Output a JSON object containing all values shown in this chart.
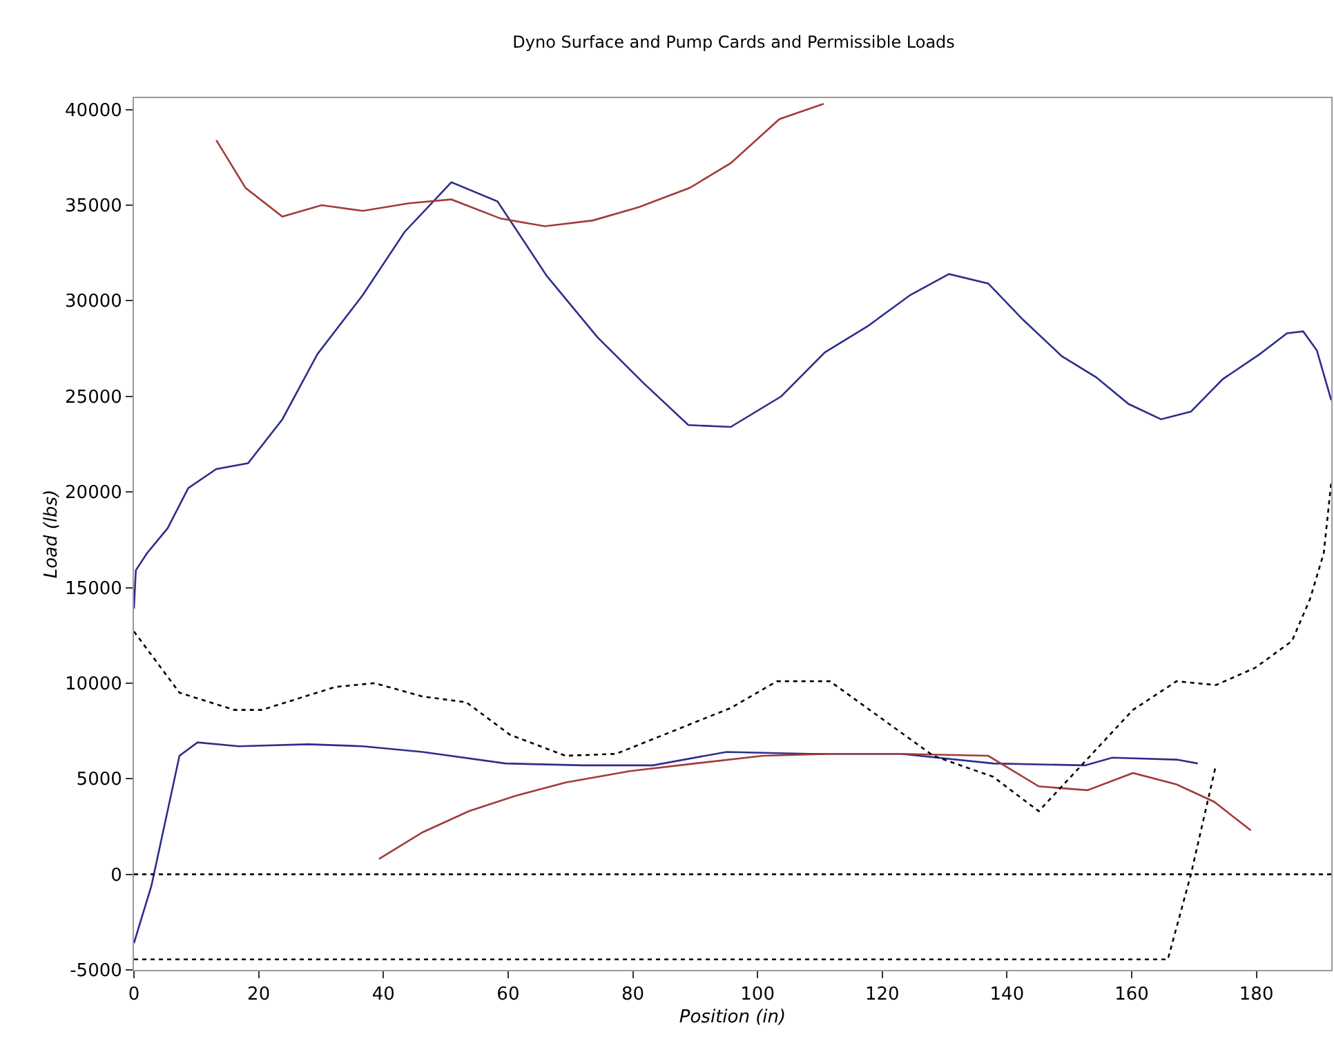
{
  "chart_data": {
    "type": "line",
    "title": "Dyno Surface and Pump Cards and Permissible Loads",
    "xlabel": "Position (in)",
    "ylabel": "Load (lbs)",
    "xlim": [
      0,
      192
    ],
    "xticks": [
      0,
      20,
      40,
      60,
      80,
      100,
      120,
      140,
      160,
      180
    ],
    "ylim": [
      -5000,
      40600
    ],
    "yticks": [
      -5000,
      0,
      5000,
      10000,
      15000,
      20000,
      25000,
      30000,
      35000,
      40000
    ],
    "grid": false,
    "marker": "none",
    "ref_lines": [
      {
        "axis": "y",
        "value": 0,
        "color": "#000000",
        "line_style": "dotted"
      }
    ],
    "series": [
      {
        "color": "#2e2e8c",
        "line_style": "solid",
        "x": [
          0,
          0.3,
          2.1,
          5.4,
          8.7,
          13.2,
          18.3,
          23.8,
          29.4,
          36.7,
          43.4,
          50.9,
          58.3,
          66.2,
          74.3,
          81.7,
          88.9,
          95.7,
          103.8,
          110.8,
          117.8,
          124.5,
          130.7,
          137.0,
          142.6,
          148.8,
          154.3,
          159.5,
          164.7,
          169.5,
          174.6,
          180.5,
          184.9,
          187.5,
          189.7,
          192.0,
          null,
          0,
          2.8,
          7.3,
          10.2,
          16.8,
          27.9,
          36.7,
          46.3,
          59.6,
          72.1,
          83.2,
          95.0,
          108.3,
          123.0,
          137.8,
          152.5,
          156.9,
          167.2,
          170.6
        ],
        "values": [
          13900,
          15900,
          16800,
          18100,
          20200,
          21200,
          21500,
          23800,
          27200,
          30300,
          33600,
          36200,
          35200,
          31300,
          28100,
          25700,
          23500,
          23400,
          25000,
          27300,
          28700,
          30300,
          31400,
          30900,
          29000,
          27100,
          26000,
          24600,
          23800,
          24200,
          25900,
          27200,
          28300,
          28400,
          27400,
          24800,
          null,
          -3600,
          -600,
          6200,
          6900,
          6700,
          6800,
          6700,
          6400,
          5800,
          5700,
          5700,
          6400,
          6300,
          6300,
          5800,
          5700,
          6100,
          6000,
          5800
        ]
      },
      {
        "color": "#a33a3a",
        "line_style": "solid",
        "x": [
          13.2,
          17.9,
          23.8,
          30.1,
          36.7,
          44.1,
          50.9,
          58.8,
          65.9,
          73.6,
          81.0,
          89.1,
          95.7,
          103.5,
          110.6,
          null,
          39.3,
          46.3,
          53.7,
          61.1,
          69.2,
          79.5,
          90.0,
          100.9,
          111.9,
          123.0,
          137.0,
          145.1,
          152.9,
          160.2,
          167.2,
          173.2,
          179.1
        ],
        "values": [
          38400,
          35900,
          34400,
          35000,
          34700,
          35100,
          35300,
          34300,
          33900,
          34200,
          34900,
          35900,
          37200,
          39500,
          40300,
          null,
          800,
          2200,
          3300,
          4100,
          4800,
          5400,
          5800,
          6200,
          6300,
          6300,
          6200,
          4600,
          4400,
          5300,
          4700,
          3800,
          2300
        ]
      },
      {
        "color": "#000000",
        "line_style": "dotted",
        "x": [
          0,
          7.3,
          16.1,
          20.5,
          32.3,
          38.6,
          46.3,
          53.3,
          60.3,
          69.2,
          77.3,
          95.7,
          103.1,
          111.6,
          128.2,
          137.8,
          145.1,
          160.2,
          167.2,
          173.5,
          179.8,
          185.7,
          188.6,
          190.8,
          192.0
        ],
        "values": [
          12700,
          9500,
          8600,
          8600,
          9800,
          10000,
          9300,
          9000,
          7300,
          6200,
          6300,
          8700,
          10100,
          10100,
          6200,
          5100,
          3300,
          8600,
          10100,
          9900,
          10800,
          12200,
          14400,
          16800,
          20500
        ]
      },
      {
        "color": "#000000",
        "line_style": "dotted",
        "x": [
          0,
          165.8,
          169.5,
          173.5
        ],
        "values": [
          -4450,
          -4450,
          0,
          5700
        ]
      }
    ]
  }
}
